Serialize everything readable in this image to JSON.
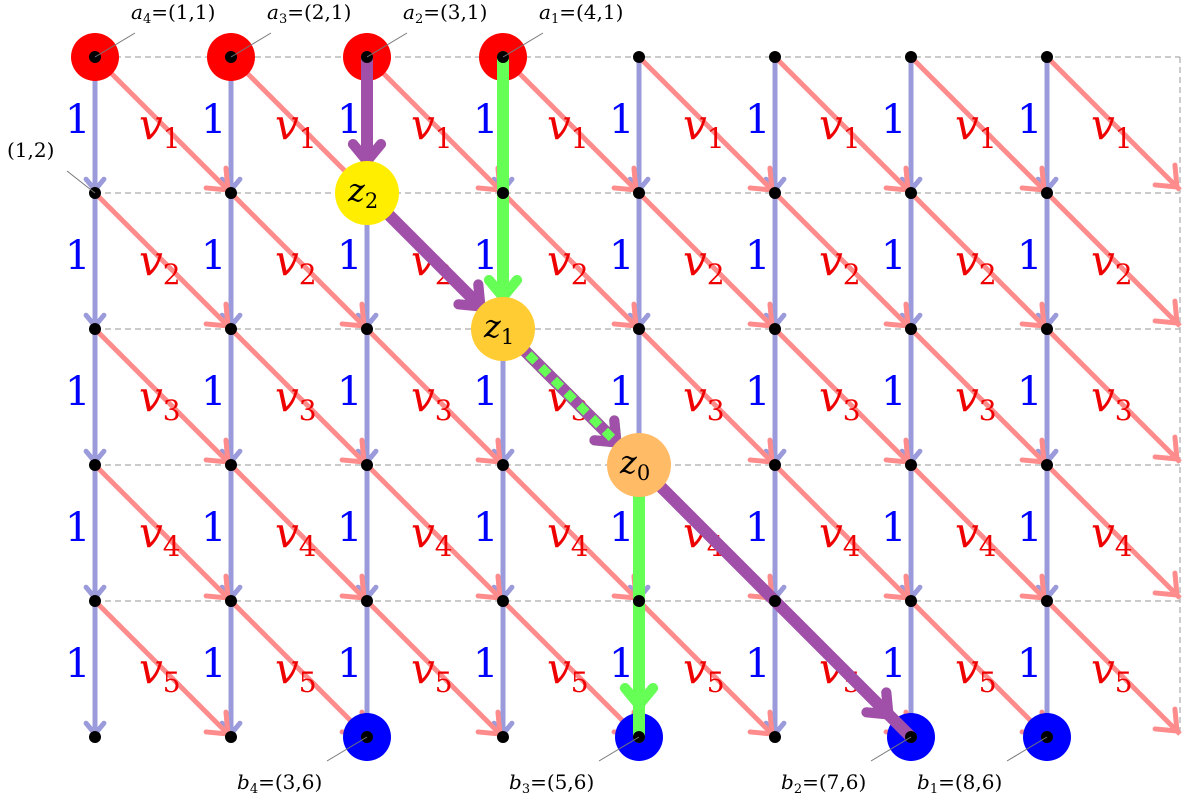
{
  "grid": {
    "columns": 8,
    "rows": 6,
    "vertical_weight_label": "1",
    "diagonal_weight_labels": [
      "v",
      "v",
      "v",
      "v",
      "v"
    ],
    "diagonal_weight_subscripts": [
      "1",
      "2",
      "3",
      "4",
      "5"
    ]
  },
  "sources": [
    {
      "name": "a",
      "sub": "4",
      "coord": "=(1,1)",
      "col": 1
    },
    {
      "name": "a",
      "sub": "3",
      "coord": "=(2,1)",
      "col": 2
    },
    {
      "name": "a",
      "sub": "2",
      "coord": "=(3,1)",
      "col": 3
    },
    {
      "name": "a",
      "sub": "1",
      "coord": "=(4,1)",
      "col": 4
    }
  ],
  "sinks": [
    {
      "name": "b",
      "sub": "4",
      "coord": "=(3,6)",
      "col": 3
    },
    {
      "name": "b",
      "sub": "3",
      "coord": "=(5,6)",
      "col": 5
    },
    {
      "name": "b",
      "sub": "2",
      "coord": "=(7,6)",
      "col": 7
    },
    {
      "name": "b",
      "sub": "1",
      "coord": "=(8,6)",
      "col": 8
    }
  ],
  "extra_label": {
    "text": "(1,2)",
    "col": 1,
    "row": 2
  },
  "nodes": [
    {
      "name": "z",
      "sub": "2",
      "col": 3,
      "row": 2,
      "color": "#ffee00"
    },
    {
      "name": "z",
      "sub": "1",
      "col": 4,
      "row": 3,
      "color": "#ffcc33"
    },
    {
      "name": "z",
      "sub": "0",
      "col": 5,
      "row": 4,
      "color": "#ffbb66"
    }
  ],
  "paths": {
    "purple": {
      "color": "#a050a8",
      "points": [
        [
          3,
          1
        ],
        [
          3,
          2
        ],
        [
          4,
          3
        ],
        [
          5,
          4
        ],
        [
          7,
          6
        ]
      ]
    },
    "green": {
      "color": "#66ff55",
      "points": [
        [
          4,
          1
        ],
        [
          4,
          3
        ],
        [
          5,
          4
        ],
        [
          5,
          6
        ]
      ]
    }
  },
  "colors": {
    "vertical_edge": "#9b9bdb",
    "diagonal_edge": "#ff8c8c",
    "vertical_label": "#0000ff",
    "diagonal_label": "#ee0000",
    "source": "#ff0000",
    "sink": "#0000ff",
    "dash": "#aaaaaa"
  }
}
